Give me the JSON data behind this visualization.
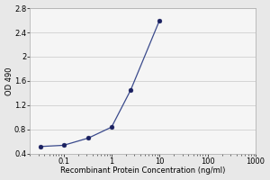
{
  "x": [
    0.033,
    0.1,
    0.33,
    1.0,
    2.5,
    10.0
  ],
  "y": [
    0.52,
    0.54,
    0.66,
    0.84,
    1.45,
    2.6
  ],
  "line_color": "#3a4a8c",
  "marker_color": "#1a2060",
  "marker_size": 3.5,
  "line_width": 0.9,
  "xlabel": "Recombinant Protein Concentration (ng/ml)",
  "ylabel": "OD 490",
  "xlim": [
    0.02,
    1000
  ],
  "ylim": [
    0.4,
    2.8
  ],
  "yticks": [
    0.4,
    0.8,
    1.2,
    1.6,
    2.0,
    2.4,
    2.8
  ],
  "ytick_labels": [
    "0.4",
    "0.8",
    "1.2",
    "1.6",
    "2",
    "2.4",
    "2.8"
  ],
  "xtick_vals": [
    0.1,
    1,
    10,
    100,
    1000
  ],
  "xtick_labels": [
    "0.1",
    "1",
    "10",
    "100",
    "1000"
  ],
  "background_color": "#e8e8e8",
  "plot_bg_color": "#f5f5f5",
  "grid_color": "#c8c8c8",
  "label_fontsize": 6,
  "tick_fontsize": 6
}
